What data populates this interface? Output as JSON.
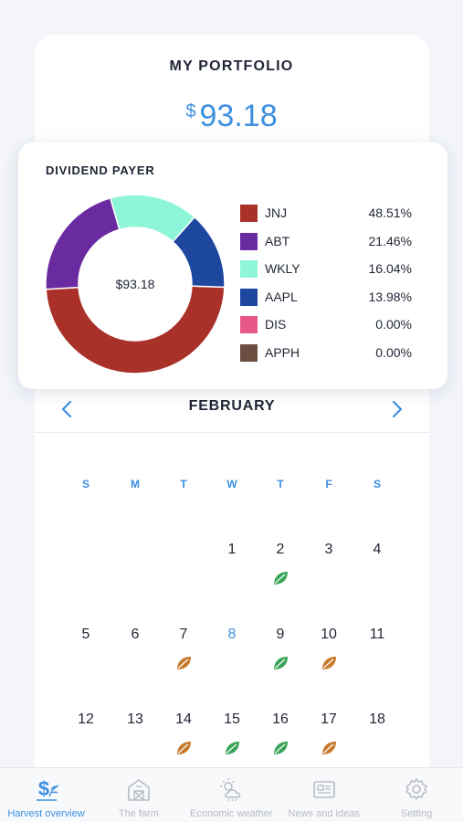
{
  "portfolio": {
    "title": "MY PORTFOLIO",
    "currency_symbol": "$",
    "amount": "93.18"
  },
  "dividend_popup": {
    "title": "DIVIDEND PAYER",
    "center_label": "$93.18"
  },
  "chart_data": {
    "type": "pie",
    "title": "DIVIDEND PAYER",
    "center_label": "$93.18",
    "donut": true,
    "series": [
      {
        "name": "JNJ",
        "value": 48.51,
        "label": "48.51%",
        "color": "#a93129"
      },
      {
        "name": "ABT",
        "value": 21.46,
        "label": "21.46%",
        "color": "#6a2aa0"
      },
      {
        "name": "WKLY",
        "value": 16.04,
        "label": "16.04%",
        "color": "#8ff5d8"
      },
      {
        "name": "AAPL",
        "value": 13.98,
        "label": "13.98%",
        "color": "#1e47a0"
      },
      {
        "name": "DIS",
        "value": 0.0,
        "label": "0.00%",
        "color": "#e8578a"
      },
      {
        "name": "APPH",
        "value": 0.0,
        "label": "0.00%",
        "color": "#6b4e40"
      }
    ]
  },
  "calendar": {
    "month": "FEBRUARY",
    "weekdays": [
      "S",
      "M",
      "T",
      "W",
      "T",
      "F",
      "S"
    ],
    "weeks": [
      [
        "",
        "",
        "",
        "1",
        "2",
        "3",
        "4"
      ],
      [
        "5",
        "6",
        "7",
        "8",
        "9",
        "10",
        "11"
      ],
      [
        "12",
        "13",
        "14",
        "15",
        "16",
        "17",
        "18"
      ]
    ],
    "today": "8",
    "leaves": [
      {
        "day": "2",
        "status": "green"
      },
      {
        "day": "7",
        "status": "orange"
      },
      {
        "day": "9",
        "status": "green"
      },
      {
        "day": "10",
        "status": "orange"
      },
      {
        "day": "14",
        "status": "orange"
      },
      {
        "day": "15",
        "status": "green"
      },
      {
        "day": "16",
        "status": "green"
      },
      {
        "day": "17",
        "status": "orange"
      }
    ]
  },
  "colors": {
    "accent": "#3d8fe0",
    "leaf_green": "#3aa55a",
    "leaf_orange": "#c77a2e",
    "tab_inactive": "#b6bac2"
  },
  "tabs": [
    {
      "label": "Harvest overview",
      "icon": "dollar-plant-icon",
      "active": true
    },
    {
      "label": "The farm",
      "icon": "barn-icon",
      "active": false
    },
    {
      "label": "Economic weather",
      "icon": "sun-cloud-icon",
      "active": false
    },
    {
      "label": "News and ideas",
      "icon": "newspaper-icon",
      "active": false
    },
    {
      "label": "Setting",
      "icon": "gear-icon",
      "active": false
    }
  ]
}
